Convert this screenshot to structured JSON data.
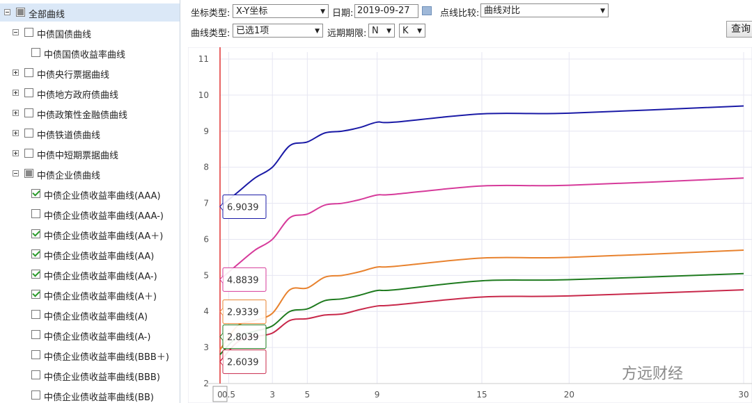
{
  "tree": {
    "nodes": [
      {
        "label": "全部曲线",
        "level": 0,
        "expander": "minus",
        "state": "partial"
      },
      {
        "label": "中债国债曲线",
        "level": 1,
        "expander": "minus",
        "state": "unchecked"
      },
      {
        "label": "中债国债收益率曲线",
        "level": 2,
        "expander": null,
        "state": "unchecked"
      },
      {
        "label": "中债央行票据曲线",
        "level": 1,
        "expander": "plus",
        "state": "unchecked"
      },
      {
        "label": "中债地方政府债曲线",
        "level": 1,
        "expander": "plus",
        "state": "unchecked"
      },
      {
        "label": "中债政策性金融债曲线",
        "level": 1,
        "expander": "plus",
        "state": "unchecked"
      },
      {
        "label": "中债铁道债曲线",
        "level": 1,
        "expander": "plus",
        "state": "unchecked"
      },
      {
        "label": "中债中短期票据曲线",
        "level": 1,
        "expander": "plus",
        "state": "unchecked"
      },
      {
        "label": "中债企业债曲线",
        "level": 1,
        "expander": "minus",
        "state": "partial"
      },
      {
        "label": "中债企业债收益率曲线(AAA)",
        "level": 2,
        "expander": null,
        "state": "checked"
      },
      {
        "label": "中债企业债收益率曲线(AAA-)",
        "level": 2,
        "expander": null,
        "state": "unchecked"
      },
      {
        "label": "中债企业债收益率曲线(AA＋)",
        "level": 2,
        "expander": null,
        "state": "checked"
      },
      {
        "label": "中债企业债收益率曲线(AA)",
        "level": 2,
        "expander": null,
        "state": "checked"
      },
      {
        "label": "中债企业债收益率曲线(AA-)",
        "level": 2,
        "expander": null,
        "state": "checked"
      },
      {
        "label": "中债企业债收益率曲线(A＋)",
        "level": 2,
        "expander": null,
        "state": "checked"
      },
      {
        "label": "中债企业债收益率曲线(A)",
        "level": 2,
        "expander": null,
        "state": "unchecked"
      },
      {
        "label": "中债企业债收益率曲线(A-)",
        "level": 2,
        "expander": null,
        "state": "unchecked"
      },
      {
        "label": "中债企业债收益率曲线(BBB＋)",
        "level": 2,
        "expander": null,
        "state": "unchecked"
      },
      {
        "label": "中债企业债收益率曲线(BBB)",
        "level": 2,
        "expander": null,
        "state": "unchecked"
      },
      {
        "label": "中债企业债收益率曲线(BB)",
        "level": 2,
        "expander": null,
        "state": "unchecked"
      }
    ]
  },
  "controls": {
    "coord_type": {
      "label": "坐标类型:",
      "value": "X-Y坐标"
    },
    "date": {
      "label": "日期:",
      "value": "2019-09-27"
    },
    "compare": {
      "label": "点线比较:",
      "value": "曲线对比"
    },
    "curve_type": {
      "label": "曲线类型:",
      "value": "已选1项"
    },
    "term": {
      "label": "远期期限:",
      "values": [
        "N",
        "K"
      ]
    },
    "query_button": "查询"
  },
  "chart_data": {
    "type": "line",
    "x": [
      0,
      1,
      2,
      3,
      4,
      5,
      6,
      7,
      8,
      9,
      10,
      15,
      20,
      30
    ],
    "series": [
      {
        "color": "#1a1aa6",
        "values": [
          6.9039,
          7.3,
          7.7,
          8.0,
          8.6,
          8.7,
          8.95,
          9.0,
          9.1,
          9.25,
          9.25,
          9.48,
          9.5,
          9.7
        ]
      },
      {
        "color": "#d63a9a",
        "values": [
          4.8839,
          5.3,
          5.7,
          6.0,
          6.6,
          6.7,
          6.95,
          7.0,
          7.1,
          7.23,
          7.25,
          7.48,
          7.5,
          7.7
        ]
      },
      {
        "color": "#e8822e",
        "values": [
          2.9339,
          3.6,
          3.75,
          3.95,
          4.6,
          4.65,
          4.95,
          5.0,
          5.1,
          5.23,
          5.25,
          5.48,
          5.5,
          5.7
        ]
      },
      {
        "color": "#1e7a1e",
        "values": [
          2.8039,
          3.3,
          3.45,
          3.6,
          4.0,
          4.07,
          4.3,
          4.35,
          4.45,
          4.58,
          4.6,
          4.85,
          4.88,
          5.05
        ]
      },
      {
        "color": "#c8284a",
        "values": [
          2.6039,
          3.15,
          3.3,
          3.4,
          3.75,
          3.8,
          3.9,
          3.93,
          4.05,
          4.15,
          4.18,
          4.4,
          4.43,
          4.6
        ]
      }
    ],
    "xlim": [
      0,
      30
    ],
    "ylim": [
      2,
      11
    ],
    "xticks": [
      0,
      0.5,
      3,
      5,
      9,
      15,
      20,
      30
    ],
    "yticks": [
      2,
      3,
      4,
      5,
      6,
      7,
      8,
      9,
      10,
      11
    ],
    "grid": true
  },
  "watermark": "方远财经"
}
